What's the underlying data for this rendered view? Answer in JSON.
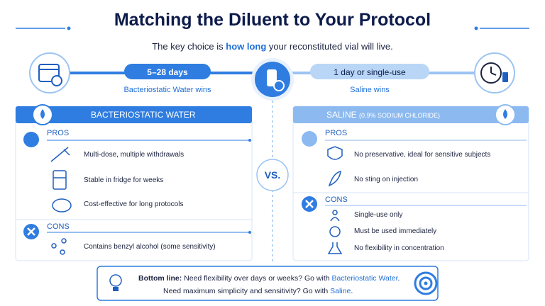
{
  "title": "Matching the Diluent to Your Protocol",
  "subtitle": [
    "The key choice is ",
    "how long",
    " your reconstituted vial will live."
  ],
  "timeline": {
    "left": {
      "pill": "5–28 days",
      "caption": "Bacteriostatic Water wins"
    },
    "right": {
      "pill": "1 day or single-use",
      "caption": "Saline wins"
    },
    "vs": "VS."
  },
  "panels": [
    {
      "header": "BACTERIOSTATIC WATER",
      "header_note": "",
      "pros_label": "PROS",
      "pros": [
        "Multi-dose, multiple withdrawals",
        "Stable in fridge for weeks",
        "Cost-effective for long protocols"
      ],
      "cons_label": "CONS",
      "cons": [
        "Contains benzyl alcohol (some sensitivity)"
      ]
    },
    {
      "header": "SALINE",
      "header_note": "(0.9% SODIUM CHLORIDE)",
      "pros_label": "PROS",
      "pros": [
        "No preservative, ideal for sensitive subjects",
        "No sting on injection"
      ],
      "cons_label": "CONS",
      "cons": [
        "Single-use only",
        "Must be used immediately",
        "No flexibility in concentration"
      ]
    }
  ],
  "bottom_line": {
    "label": "Bottom line:",
    "line1": [
      " Need flexibility over days or weeks? Go with ",
      "Bacteriostatic Water",
      "."
    ],
    "line2": [
      "Need maximum simplicity and sensitivity? Go with ",
      "Saline",
      "."
    ]
  }
}
